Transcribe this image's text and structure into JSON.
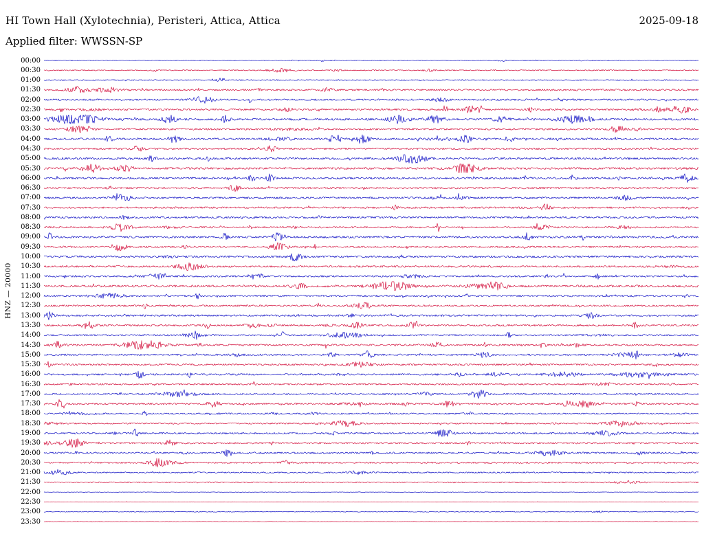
{
  "header": {
    "station_title": "HI Town Hall (Xylotechnia), Peristeri, Attica, Attica",
    "date": "2025-09-18",
    "filter_label": "Applied filter:",
    "filter_value": "WWSSN-SP"
  },
  "axis": {
    "channel_label": "HNZ — 20000"
  },
  "chart_data": {
    "type": "line",
    "subtype": "helicorder-seismogram",
    "title": "HI Town Hall (Xylotechnia), Peristeri, Attica, Attica",
    "date": "2025-09-18",
    "filter": "WWSSN-SP",
    "channel": "HNZ",
    "scale": 20000,
    "minutes_per_row": 30,
    "x_start": "00:00",
    "x_end": "24:00",
    "legend": "none",
    "grid": false,
    "colors": {
      "blue": "#0000c0",
      "red": "#d00030"
    },
    "row_times": [
      "00:00",
      "00:30",
      "01:00",
      "01:30",
      "02:00",
      "02:30",
      "03:00",
      "03:30",
      "04:00",
      "04:30",
      "05:00",
      "05:30",
      "06:00",
      "06:30",
      "07:00",
      "07:30",
      "08:00",
      "08:30",
      "09:00",
      "09:30",
      "10:00",
      "10:30",
      "11:00",
      "11:30",
      "12:00",
      "12:30",
      "13:00",
      "13:30",
      "14:00",
      "14:30",
      "15:00",
      "15:30",
      "16:00",
      "16:30",
      "17:00",
      "17:30",
      "18:00",
      "18:30",
      "19:00",
      "19:30",
      "20:00",
      "20:30",
      "21:00",
      "21:30",
      "22:00",
      "22:30",
      "23:00",
      "23:30"
    ],
    "row_colors": [
      "blue",
      "red",
      "blue",
      "red",
      "blue",
      "red",
      "blue",
      "red",
      "blue",
      "red",
      "blue",
      "red",
      "blue",
      "red",
      "blue",
      "red",
      "blue",
      "red",
      "blue",
      "red",
      "blue",
      "red",
      "blue",
      "red",
      "blue",
      "red",
      "blue",
      "red",
      "blue",
      "red",
      "blue",
      "red",
      "blue",
      "red",
      "blue",
      "red",
      "blue",
      "red",
      "blue",
      "red",
      "blue",
      "red",
      "blue",
      "red",
      "blue",
      "red",
      "blue",
      "red"
    ],
    "row_activity": [
      0.18,
      0.25,
      0.28,
      0.5,
      0.5,
      0.55,
      0.62,
      0.55,
      0.6,
      0.5,
      0.65,
      0.62,
      0.6,
      0.52,
      0.55,
      0.55,
      0.55,
      0.5,
      0.62,
      0.5,
      0.6,
      0.55,
      0.5,
      0.65,
      0.55,
      0.5,
      0.58,
      0.5,
      0.45,
      0.5,
      0.5,
      0.5,
      0.52,
      0.45,
      0.45,
      0.5,
      0.4,
      0.4,
      0.52,
      0.45,
      0.5,
      0.45,
      0.35,
      0.3,
      0.03,
      0.03,
      0.12,
      0.05
    ]
  }
}
